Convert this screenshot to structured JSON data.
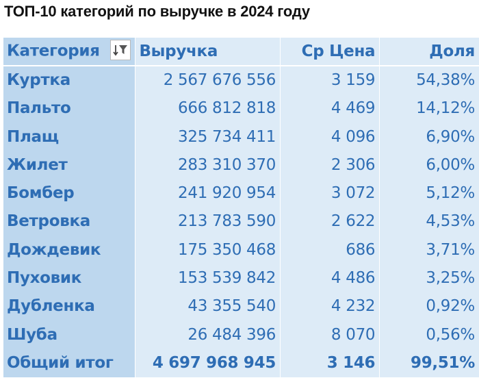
{
  "title": "ТОП-10 категорий по выручке в 2024 году",
  "colors": {
    "text": "#2E6DB4",
    "category_column_bg": "#BDD7EE",
    "value_bg": "#DDEBF7"
  },
  "headers": {
    "category": "Категория",
    "revenue": "Выручка",
    "avg_price": "Ср Цена",
    "share": "Доля",
    "filter_icon": "sort-filter-icon"
  },
  "rows": [
    {
      "category": "Куртка",
      "revenue": "2 567 676 556",
      "avg_price": "3 159",
      "share": "54,38%"
    },
    {
      "category": "Пальто",
      "revenue": "666 812 818",
      "avg_price": "4 469",
      "share": "14,12%"
    },
    {
      "category": "Плащ",
      "revenue": "325 734 411",
      "avg_price": "4 096",
      "share": "6,90%"
    },
    {
      "category": "Жилет",
      "revenue": "283 310 370",
      "avg_price": "2 306",
      "share": "6,00%"
    },
    {
      "category": "Бомбер",
      "revenue": "241 920 954",
      "avg_price": "3 072",
      "share": "5,12%"
    },
    {
      "category": "Ветровка",
      "revenue": "213 783 590",
      "avg_price": "2 622",
      "share": "4,53%"
    },
    {
      "category": "Дождевик",
      "revenue": "175 350 468",
      "avg_price": "686",
      "share": "3,71%"
    },
    {
      "category": "Пуховик",
      "revenue": "153 539 842",
      "avg_price": "4 486",
      "share": "3,25%"
    },
    {
      "category": "Дубленка",
      "revenue": "43 355 540",
      "avg_price": "4 232",
      "share": "0,92%"
    },
    {
      "category": "Шуба",
      "revenue": "26 484 396",
      "avg_price": "8 070",
      "share": "0,56%"
    }
  ],
  "total": {
    "category": "Общий итог",
    "revenue": "4 697 968 945",
    "avg_price": "3 146",
    "share": "99,51%"
  }
}
